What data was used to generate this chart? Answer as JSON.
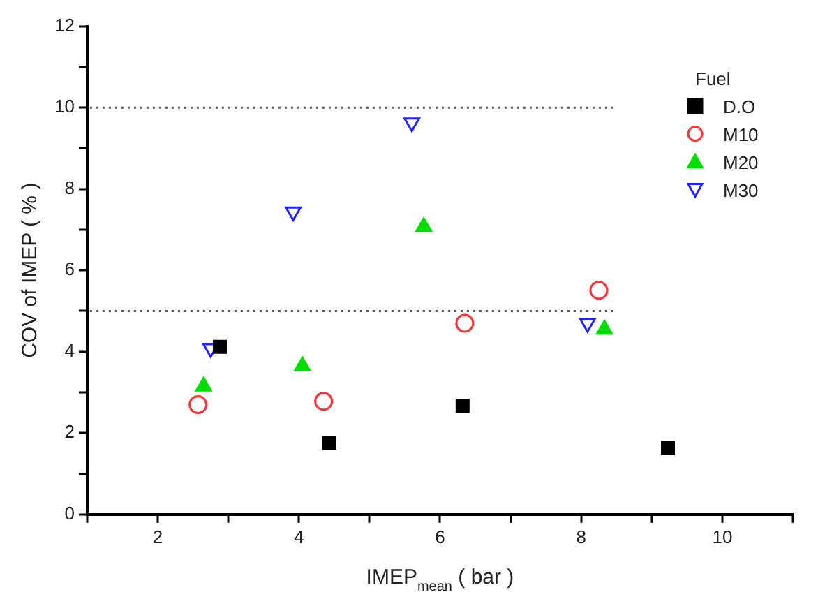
{
  "chart_data": {
    "type": "scatter",
    "xlabel": "IMEP$_{mean}$ ( bar )",
    "ylabel": "COV of IMEP ( % )",
    "legend_title": "Fuel",
    "legend": "top right",
    "xlim": [
      1,
      11
    ],
    "xticks": [
      {
        "value": 1,
        "label": null
      },
      2,
      {
        "value": 3,
        "label": null
      },
      4,
      {
        "value": 5,
        "label": null
      },
      6,
      {
        "value": 7,
        "label": null
      },
      8,
      {
        "value": 9,
        "label": null
      },
      10,
      {
        "value": 11,
        "label": null
      }
    ],
    "ylim": [
      0,
      12
    ],
    "yticks": [
      0,
      {
        "value": 1,
        "label": null
      },
      2,
      {
        "value": 3,
        "label": null
      },
      4,
      {
        "value": 5,
        "label": null
      },
      6,
      {
        "value": 7,
        "label": null
      },
      8,
      {
        "value": 9,
        "label": null
      },
      10,
      {
        "value": 11,
        "label": null
      },
      12
    ],
    "grid": false,
    "ref_lines": [
      {
        "axis": "y",
        "value": 10,
        "color": "#555555",
        "line_style": "dotted"
      },
      {
        "axis": "y",
        "value": 5,
        "color": "#555555",
        "line_style": "dotted"
      }
    ],
    "series": [
      {
        "name": "D.O",
        "color": "#000000",
        "marker": "square",
        "x": [
          2.88,
          4.43,
          6.32,
          9.23
        ],
        "values": [
          4.12,
          1.76,
          2.67,
          1.63
        ]
      },
      {
        "name": "M10",
        "color": "#ff3333",
        "marker": "circle",
        "x": [
          2.57,
          4.35,
          6.35,
          8.25
        ],
        "values": [
          2.7,
          2.78,
          4.7,
          5.51
        ]
      },
      {
        "name": "M20",
        "color": "#00dd00",
        "marker": "triangle",
        "x": [
          2.65,
          4.05,
          5.77,
          8.33
        ],
        "values": [
          3.15,
          3.65,
          7.07,
          4.55
        ]
      },
      {
        "name": "M30",
        "color": "#2222ff",
        "marker": "triangle-down",
        "x": [
          2.75,
          3.92,
          5.6,
          8.09
        ],
        "values": [
          4.08,
          7.44,
          9.63,
          4.7
        ]
      }
    ]
  }
}
